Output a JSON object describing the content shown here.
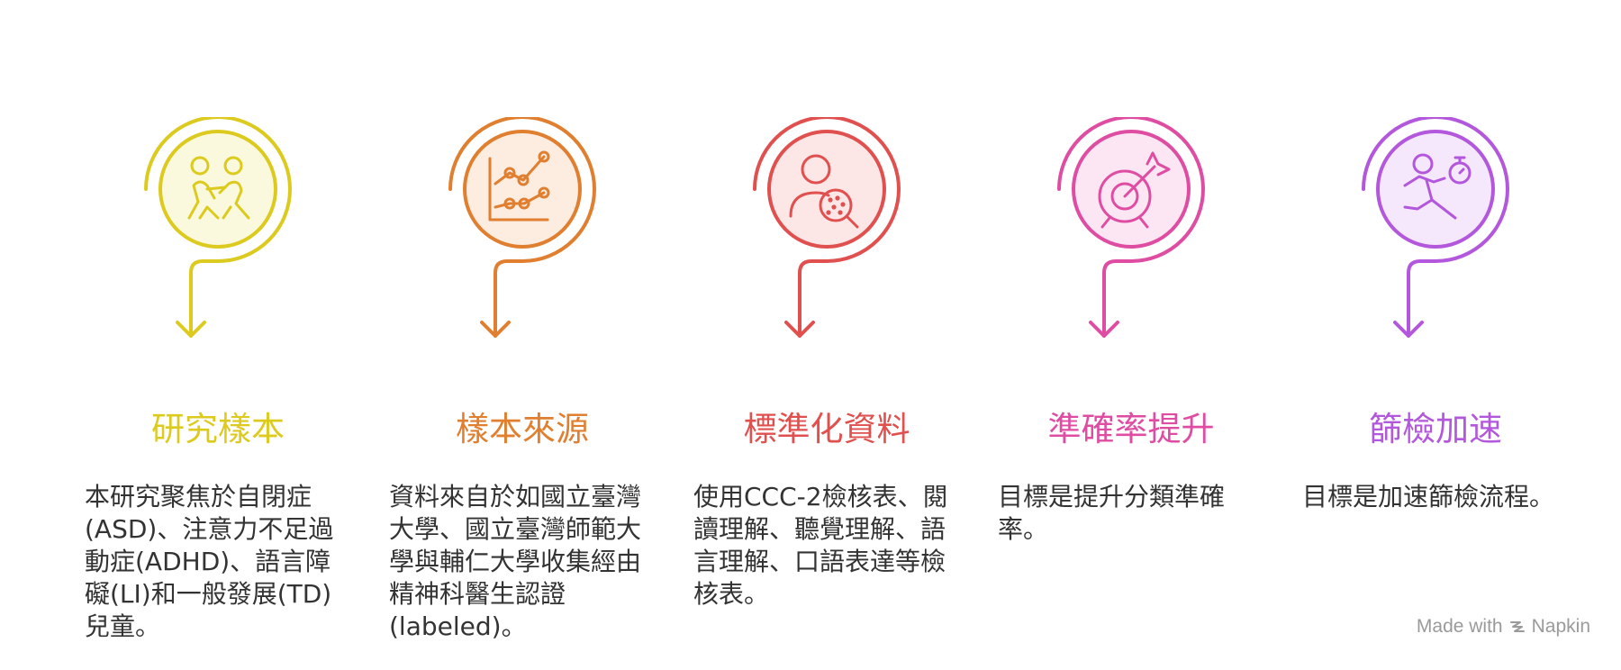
{
  "steps": [
    {
      "title": "研究樣本",
      "description": "本研究聚焦於自閉症(ASD)、注意力不足過動症(ADHD)、語言障礙(LI)和一般發展(TD)兒童。",
      "color": "#dccb1e",
      "fill": "#fbf9dd",
      "icon": "children-icon"
    },
    {
      "title": "樣本來源",
      "description": "資料來自於如國立臺灣大學、國立臺灣師範大學與輔仁大學收集經由精神科醫生認證(labeled)。",
      "color": "#e07f30",
      "fill": "#fdece0",
      "icon": "line-chart-icon"
    },
    {
      "title": "標準化資料",
      "description": "使用CCC-2檢核表、閱讀理解、聽覺理解、語言理解、口語表達等檢核表。",
      "color": "#e0504f",
      "fill": "#fde6e6",
      "icon": "user-search-icon"
    },
    {
      "title": "準確率提升",
      "description": "目標是提升分類準確率。",
      "color": "#df4da3",
      "fill": "#fce6f3",
      "icon": "target-arrow-icon"
    },
    {
      "title": "篩檢加速",
      "description": "目標是加速篩檢流程。",
      "color": "#b357dc",
      "fill": "#f5e8fc",
      "icon": "running-timer-icon"
    }
  ],
  "credit": {
    "prefix": "Made with",
    "brand": "Napkin",
    "icon": "napkin-logo-icon"
  }
}
